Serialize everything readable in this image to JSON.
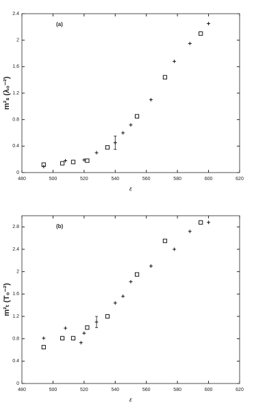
{
  "chart_data": [
    {
      "type": "scatter",
      "annotation": "(a)",
      "x_label": "ε",
      "y_label": "m²ₛ (λ₀⁻²)",
      "xlim": [
        480,
        620
      ],
      "xticks": [
        480,
        500,
        520,
        540,
        560,
        580,
        600,
        620
      ],
      "ylim": [
        0,
        2.4
      ],
      "yticks": [
        0,
        0.4,
        0.8,
        1.2,
        1.6,
        2,
        2.4
      ],
      "series": [
        {
          "marker": "square",
          "color": "#111111",
          "x": [
            494,
            506,
            513,
            522,
            535,
            554,
            572,
            595
          ],
          "values": [
            0.12,
            0.14,
            0.16,
            0.18,
            0.38,
            0.85,
            1.44,
            2.1
          ]
        },
        {
          "marker": "plus",
          "color": "#111111",
          "x": [
            494,
            508,
            520,
            528,
            540,
            545,
            550,
            563,
            578,
            588,
            600
          ],
          "values": [
            0.09,
            0.18,
            0.19,
            0.3,
            0.45,
            0.6,
            0.72,
            1.1,
            1.68,
            1.95,
            2.25
          ],
          "errors": [
            null,
            null,
            null,
            null,
            0.1,
            null,
            null,
            null,
            null,
            null,
            null
          ]
        }
      ]
    },
    {
      "type": "scatter",
      "annotation": "(b)",
      "x_label": "ε",
      "y_label": "m²ₜ (T₀⁻²)",
      "xlim": [
        480,
        620
      ],
      "xticks": [
        480,
        500,
        520,
        540,
        560,
        580,
        600,
        620
      ],
      "ylim": [
        0,
        3
      ],
      "yticks": [
        0,
        0.4,
        0.8,
        1.2,
        1.6,
        2,
        2.4,
        2.8
      ],
      "series": [
        {
          "marker": "square",
          "color": "#111111",
          "x": [
            494,
            506,
            513,
            522,
            535,
            554,
            572,
            595
          ],
          "values": [
            0.65,
            0.81,
            0.81,
            1.0,
            1.2,
            1.95,
            2.55,
            2.88
          ]
        },
        {
          "marker": "plus",
          "color": "#111111",
          "x": [
            494,
            508,
            518,
            520,
            528,
            540,
            545,
            550,
            563,
            578,
            588,
            600
          ],
          "values": [
            0.81,
            0.99,
            0.73,
            0.9,
            1.1,
            1.44,
            1.56,
            1.82,
            2.1,
            2.4,
            2.72,
            2.88
          ],
          "errors": [
            null,
            null,
            null,
            null,
            0.1,
            null,
            null,
            null,
            null,
            null,
            null,
            null
          ]
        }
      ]
    }
  ]
}
